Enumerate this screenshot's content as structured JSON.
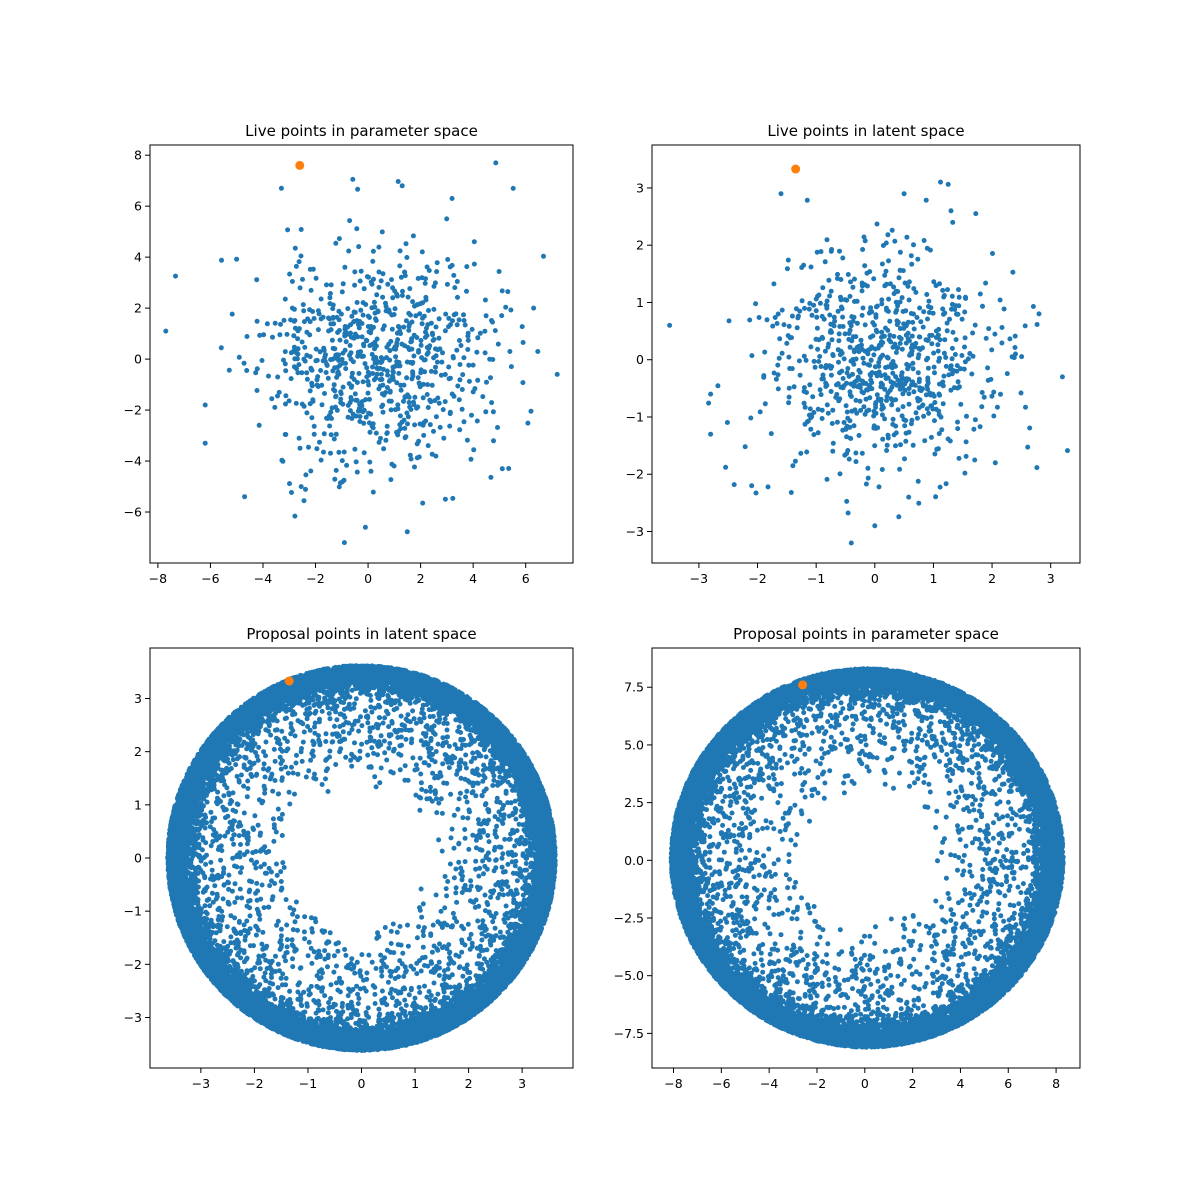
{
  "colors": {
    "live_points": "#1f77b4",
    "highlight_point": "#ff7f0e",
    "frame": "#000000"
  },
  "chart_data": [
    {
      "type": "scatter",
      "title": "Live points in parameter space",
      "xlabel": "",
      "ylabel": "",
      "xlim": [
        -8.3,
        7.8
      ],
      "ylim": [
        -8.0,
        8.4
      ],
      "xticks": [
        -8,
        -6,
        -4,
        -2,
        0,
        2,
        4,
        6
      ],
      "yticks": [
        -6,
        -4,
        -2,
        0,
        2,
        4,
        6,
        8
      ],
      "grid": false,
      "distribution": {
        "kind": "gaussian",
        "count": 800,
        "cx": 0.3,
        "cy": 0.1,
        "sigma": 2.2,
        "seed": 11
      },
      "points": [
        {
          "x": -7.7,
          "y": 1.1
        },
        {
          "x": 7.2,
          "y": -0.6
        },
        {
          "x": -3.3,
          "y": 6.7
        },
        {
          "x": 3.2,
          "y": 6.3
        },
        {
          "x": 1.3,
          "y": 6.8
        },
        {
          "x": -0.9,
          "y": -7.2
        },
        {
          "x": -0.1,
          "y": -6.6
        },
        {
          "x": 6.3,
          "y": 2.0
        },
        {
          "x": -6.2,
          "y": -1.8
        },
        {
          "x": -6.2,
          "y": -3.3
        },
        {
          "x": -4.7,
          "y": -5.4
        },
        {
          "x": 5.4,
          "y": 0.3
        }
      ],
      "highlight": [
        {
          "x": -2.6,
          "y": 7.6
        }
      ]
    },
    {
      "type": "scatter",
      "title": "Live points in latent space",
      "xlabel": "",
      "ylabel": "",
      "xlim": [
        -3.8,
        3.5
      ],
      "ylim": [
        -3.55,
        3.75
      ],
      "xticks": [
        -3,
        -2,
        -1,
        0,
        1,
        2,
        3
      ],
      "yticks": [
        -3,
        -2,
        -1,
        0,
        1,
        2,
        3
      ],
      "grid": false,
      "distribution": {
        "kind": "gaussian",
        "count": 800,
        "cx": 0.05,
        "cy": -0.05,
        "sigma": 0.95,
        "seed": 23
      },
      "points": [
        {
          "x": -3.5,
          "y": 0.6
        },
        {
          "x": 3.2,
          "y": -0.3
        },
        {
          "x": -1.6,
          "y": 2.9
        },
        {
          "x": 1.3,
          "y": 2.6
        },
        {
          "x": 0.5,
          "y": 2.9
        },
        {
          "x": -0.4,
          "y": -3.2
        },
        {
          "x": 0.0,
          "y": -2.9
        },
        {
          "x": 2.8,
          "y": 0.8
        },
        {
          "x": -2.8,
          "y": -0.6
        },
        {
          "x": -2.8,
          "y": -1.3
        },
        {
          "x": -2.1,
          "y": -2.2
        },
        {
          "x": 2.4,
          "y": 0.1
        }
      ],
      "highlight": [
        {
          "x": -1.35,
          "y": 3.33
        }
      ]
    },
    {
      "type": "scatter",
      "title": "Proposal points in latent space",
      "xlabel": "",
      "ylabel": "",
      "xlim": [
        -3.95,
        3.95
      ],
      "ylim": [
        -3.95,
        3.95
      ],
      "xticks": [
        -3,
        -2,
        -1,
        0,
        1,
        2,
        3
      ],
      "yticks": [
        -3,
        -2,
        -1,
        0,
        1,
        2,
        3
      ],
      "grid": false,
      "distribution": {
        "kind": "ring",
        "count": 16000,
        "cx": 0.0,
        "cy": 0.0,
        "r_outer": 3.62,
        "r_scale": 0.38,
        "sparse_count": 2600,
        "r_inner": 1.2,
        "seed": 37
      },
      "points": [],
      "highlight": [
        {
          "x": -1.35,
          "y": 3.33
        }
      ]
    },
    {
      "type": "scatter",
      "title": "Proposal points in parameter space",
      "xlabel": "",
      "ylabel": "",
      "xlim": [
        -8.9,
        9.0
      ],
      "ylim": [
        -9.0,
        9.2
      ],
      "xticks": [
        -8,
        -6,
        -4,
        -2,
        0,
        2,
        4,
        6,
        8
      ],
      "yticks": [
        -7.5,
        -5.0,
        -2.5,
        0.0,
        2.5,
        5.0,
        7.5
      ],
      "ytick_labels": [
        "−7.5",
        "−5.0",
        "−2.5",
        "0.0",
        "2.5",
        "5.0",
        "7.5"
      ],
      "grid": false,
      "distribution": {
        "kind": "ring",
        "count": 16000,
        "cx": 0.1,
        "cy": 0.1,
        "r_outer": 8.2,
        "r_scale": 0.85,
        "sparse_count": 2600,
        "r_inner": 2.7,
        "seed": 53
      },
      "points": [],
      "highlight": [
        {
          "x": -2.6,
          "y": 7.6
        }
      ]
    }
  ]
}
